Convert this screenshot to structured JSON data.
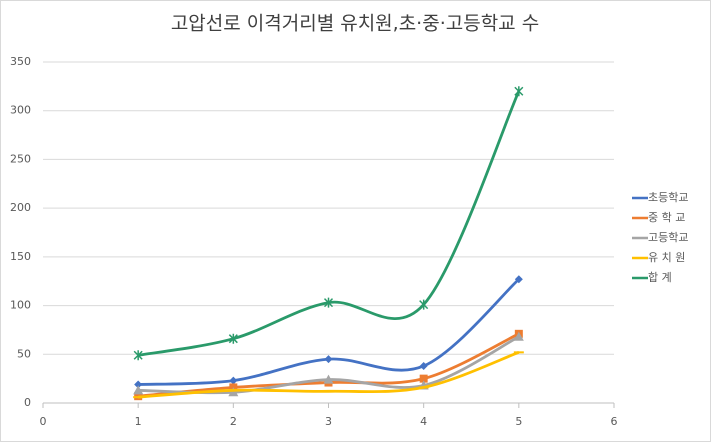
{
  "chart_data": {
    "type": "line",
    "title": "고압선로 이격거리별 유치원,초·중·고등학교 수",
    "x": [
      1,
      2,
      3,
      4,
      5
    ],
    "series": [
      {
        "name": "초등학교",
        "color": "#4472c4",
        "marker": "diamond",
        "values": [
          19,
          23,
          45,
          38,
          127
        ]
      },
      {
        "name": "중 학 교",
        "color": "#ed7d31",
        "marker": "square",
        "values": [
          7,
          16,
          21,
          25,
          71
        ]
      },
      {
        "name": "고등학교",
        "color": "#a5a5a5",
        "marker": "triangle",
        "values": [
          13,
          11,
          24,
          18,
          68
        ]
      },
      {
        "name": "유 치 원",
        "color": "#ffc000",
        "marker": "dash",
        "values": [
          6,
          13,
          12,
          16,
          52
        ]
      },
      {
        "name": "합 계",
        "color": "#2a9a6a",
        "marker": "star",
        "values": [
          49,
          66,
          103,
          101,
          320
        ]
      }
    ],
    "xlim": [
      0,
      6
    ],
    "xticks": [
      0,
      1,
      2,
      3,
      4,
      5,
      6
    ],
    "ylim": [
      0,
      350
    ],
    "yticks": [
      0,
      50,
      100,
      150,
      200,
      250,
      300,
      350
    ],
    "grid": true,
    "smooth": true,
    "legend": "right"
  }
}
